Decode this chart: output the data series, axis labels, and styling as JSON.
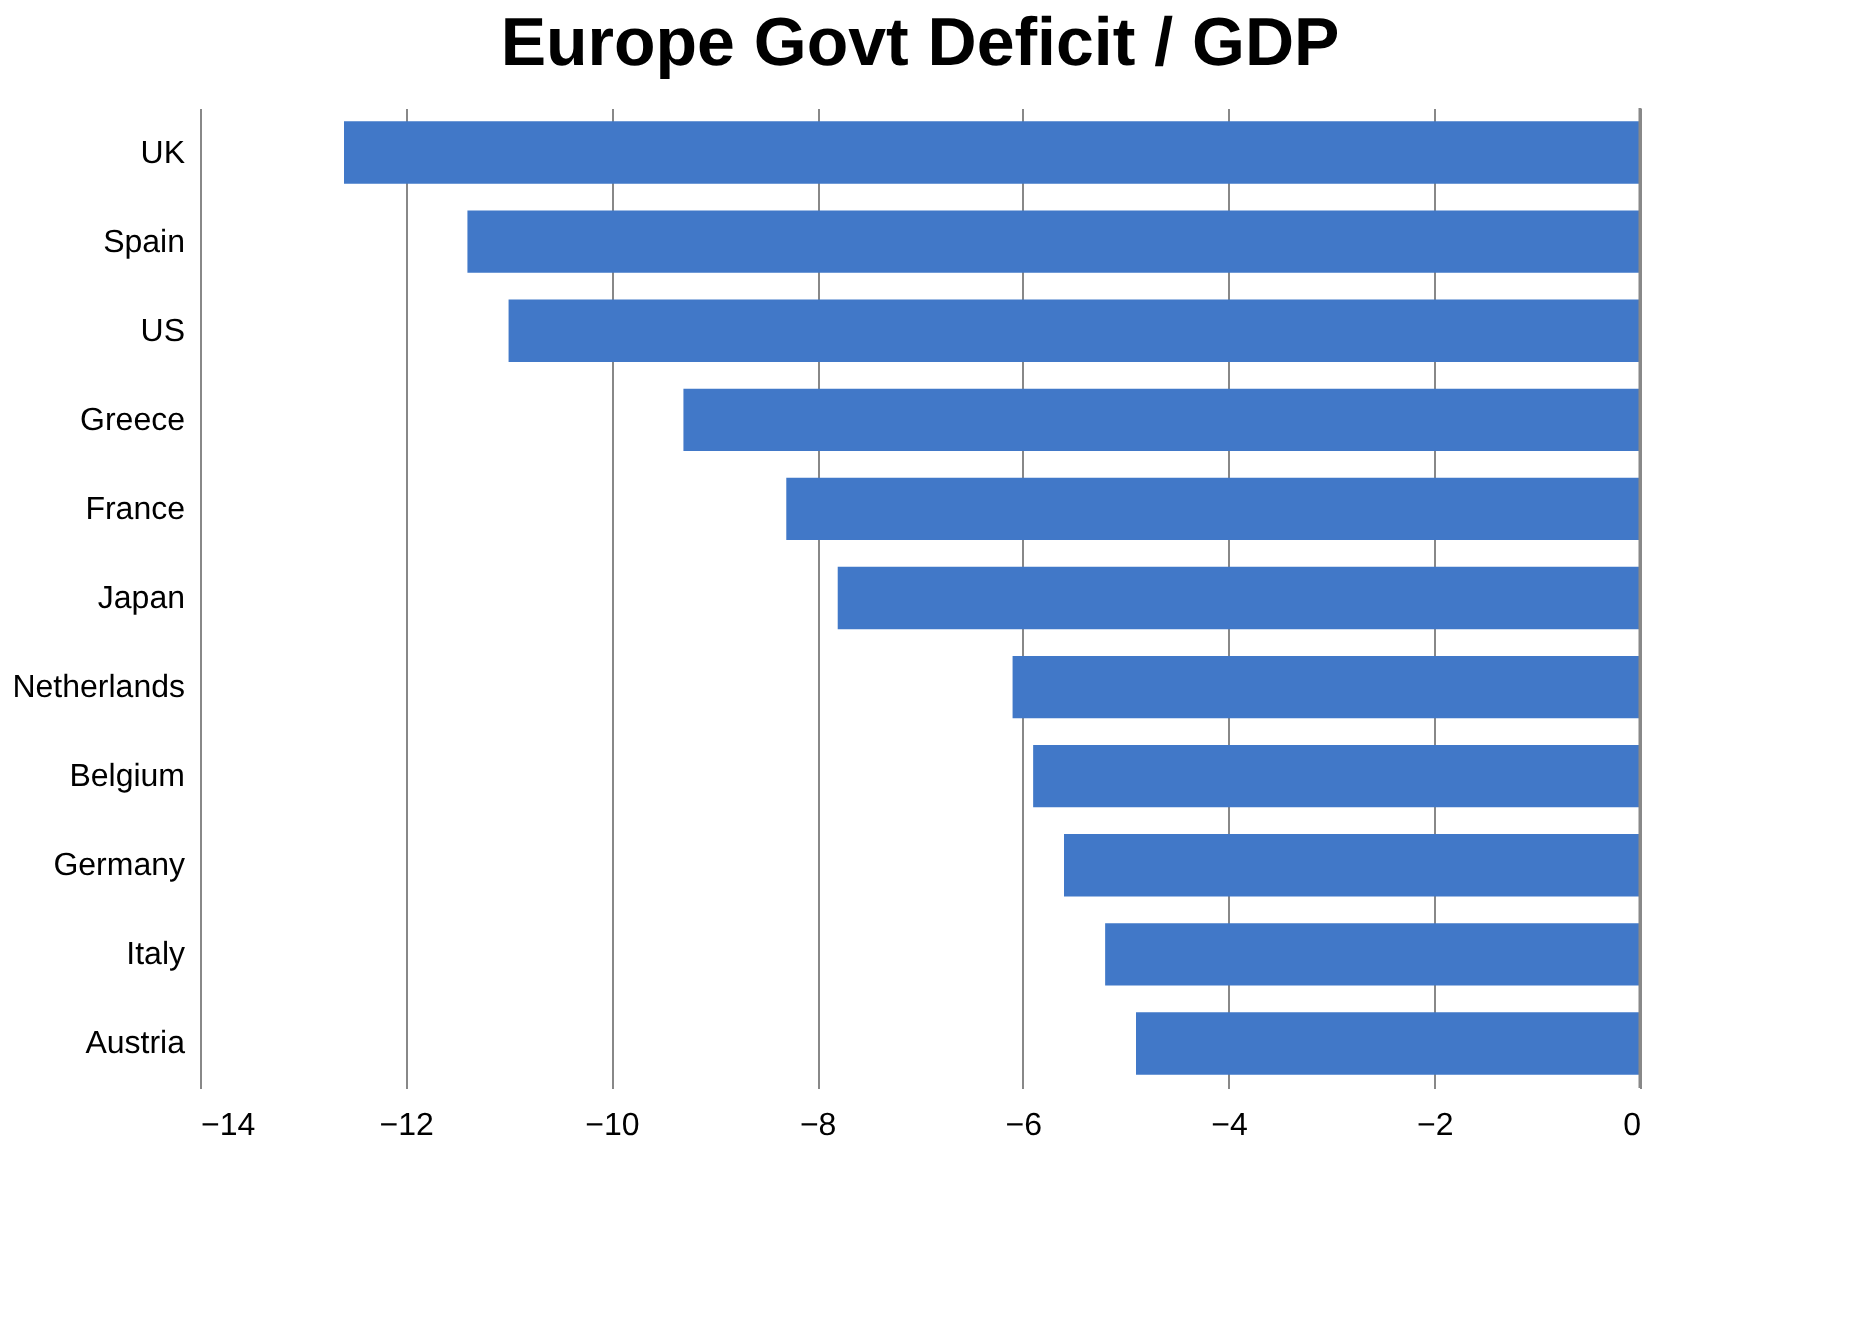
{
  "chart_data": {
    "type": "bar",
    "orientation": "horizontal",
    "title": "Europe Govt Deficit / GDP",
    "categories": [
      "UK",
      "Spain",
      "US",
      "Greece",
      "France",
      "Japan",
      "Netherlands",
      "Belgium",
      "Germany",
      "Italy",
      "Austria"
    ],
    "values": [
      -12.6,
      -11.4,
      -11.0,
      -9.3,
      -8.3,
      -7.8,
      -6.1,
      -5.9,
      -5.6,
      -5.2,
      -4.9
    ],
    "color": "#4178c8",
    "xlim": [
      -14,
      0
    ],
    "xticks": [
      -14,
      -12,
      -10,
      -8,
      -6,
      -4,
      -2,
      0
    ],
    "grid": "x"
  }
}
